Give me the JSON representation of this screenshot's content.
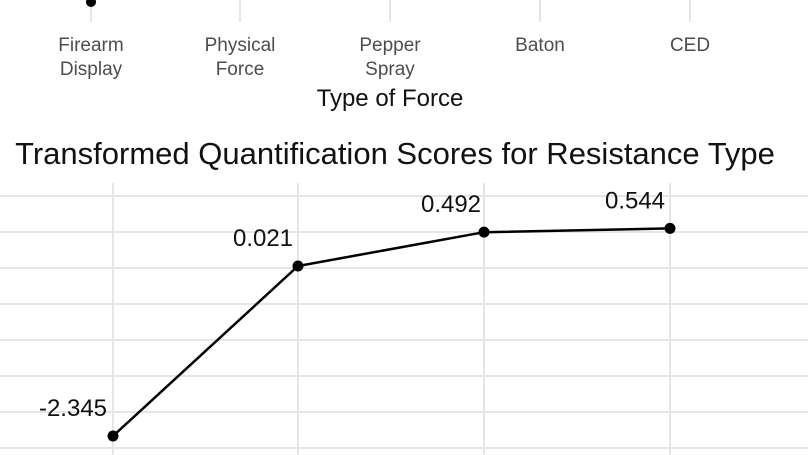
{
  "chart_data": [
    {
      "type": "line",
      "xlabel": "Type of Force",
      "categories": [
        "Firearm\nDisplay",
        "Physical\nForce",
        "Pepper\nSpray",
        "Baton",
        "CED"
      ],
      "note": "only bottom portion of this chart is visible"
    },
    {
      "type": "line",
      "title": "Transformed Quantification Scores for Resistance Type",
      "x_points_visible": 4,
      "values": [
        -2.345,
        0.021,
        0.492,
        0.544
      ],
      "data_labels": [
        "-2.345",
        "0.021",
        "0.492",
        "0.544"
      ],
      "ylim": [
        -2.45,
        0.8
      ],
      "grid": true
    }
  ]
}
